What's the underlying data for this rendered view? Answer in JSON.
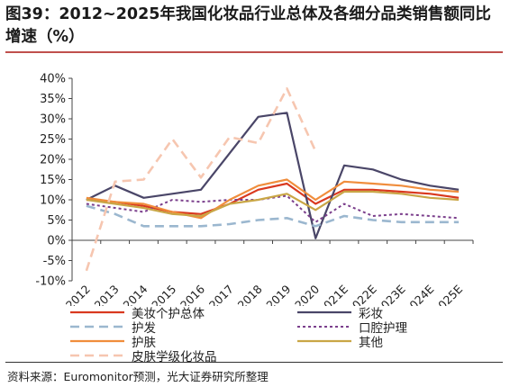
{
  "title": "图39：2012~2025年我国化妆品行业总体及各细分品类销售额同比增速（%）",
  "source": "资料来源：Euromonitor预测，光大证券研究所整理",
  "colors": {
    "accent_rule": "#c0504d",
    "total": "#d9391f",
    "color_cosmetics": "#4a4668",
    "hair": "#9bb7cf",
    "oral": "#7b3f8c",
    "skin": "#f08d3c",
    "other": "#c9a646",
    "premium": "#f6c6b0"
  },
  "chart_data": {
    "type": "line",
    "categories": [
      "2012",
      "2013",
      "2014",
      "2015",
      "2016",
      "2017",
      "2018",
      "2019",
      "2020",
      "2021E",
      "2022E",
      "2023E",
      "2024E",
      "2025E"
    ],
    "y_ticks": [
      "40%",
      "35%",
      "30%",
      "25%",
      "20%",
      "15%",
      "10%",
      "5%",
      "0%",
      "-5%",
      "-10%"
    ],
    "ylim": [
      -10,
      40
    ],
    "y_unit": "%",
    "grid": false,
    "legend_position": "bottom",
    "series": [
      {
        "name": "美妆个护总体",
        "style": "solid",
        "color": "#d9391f",
        "values": [
          10,
          9.5,
          8.5,
          7,
          6.5,
          9,
          12.5,
          14,
          9,
          12.5,
          12.5,
          12,
          11.5,
          10.5
        ]
      },
      {
        "name": "彩妆",
        "style": "solid",
        "color": "#4a4668",
        "values": [
          10,
          13.5,
          10.5,
          11.5,
          12.5,
          21.5,
          30.5,
          31.5,
          0.5,
          18.5,
          17.5,
          15,
          13.5,
          12.5
        ]
      },
      {
        "name": "护发",
        "style": "dashed",
        "color": "#9bb7cf",
        "values": [
          8.5,
          6.5,
          3.5,
          3.5,
          3.5,
          4,
          5,
          5.5,
          3.5,
          6,
          5,
          4.5,
          4.5,
          4.5
        ]
      },
      {
        "name": "口腔护理",
        "style": "dotted",
        "color": "#7b3f8c",
        "values": [
          9,
          8,
          7,
          10,
          9.5,
          10,
          10,
          11,
          4.5,
          9,
          6,
          6.5,
          6,
          5.5
        ]
      },
      {
        "name": "护肤",
        "style": "solid",
        "color": "#f08d3c",
        "values": [
          10.5,
          9.5,
          9,
          7,
          5.5,
          10,
          13.5,
          15,
          10,
          14.5,
          14,
          13.5,
          12.5,
          12
        ]
      },
      {
        "name": "其他",
        "style": "solid",
        "color": "#c9a646",
        "values": [
          10,
          9,
          8,
          6.5,
          6,
          9,
          10,
          11.5,
          7.5,
          12,
          12,
          11.5,
          10.5,
          10
        ]
      },
      {
        "name": "皮肤学级化妆品",
        "style": "dashed",
        "color": "#f6c6b0",
        "values": [
          -7.5,
          14.5,
          15,
          25,
          15.5,
          25.5,
          24,
          37.5,
          22,
          null,
          null,
          null,
          null,
          null
        ]
      }
    ]
  }
}
